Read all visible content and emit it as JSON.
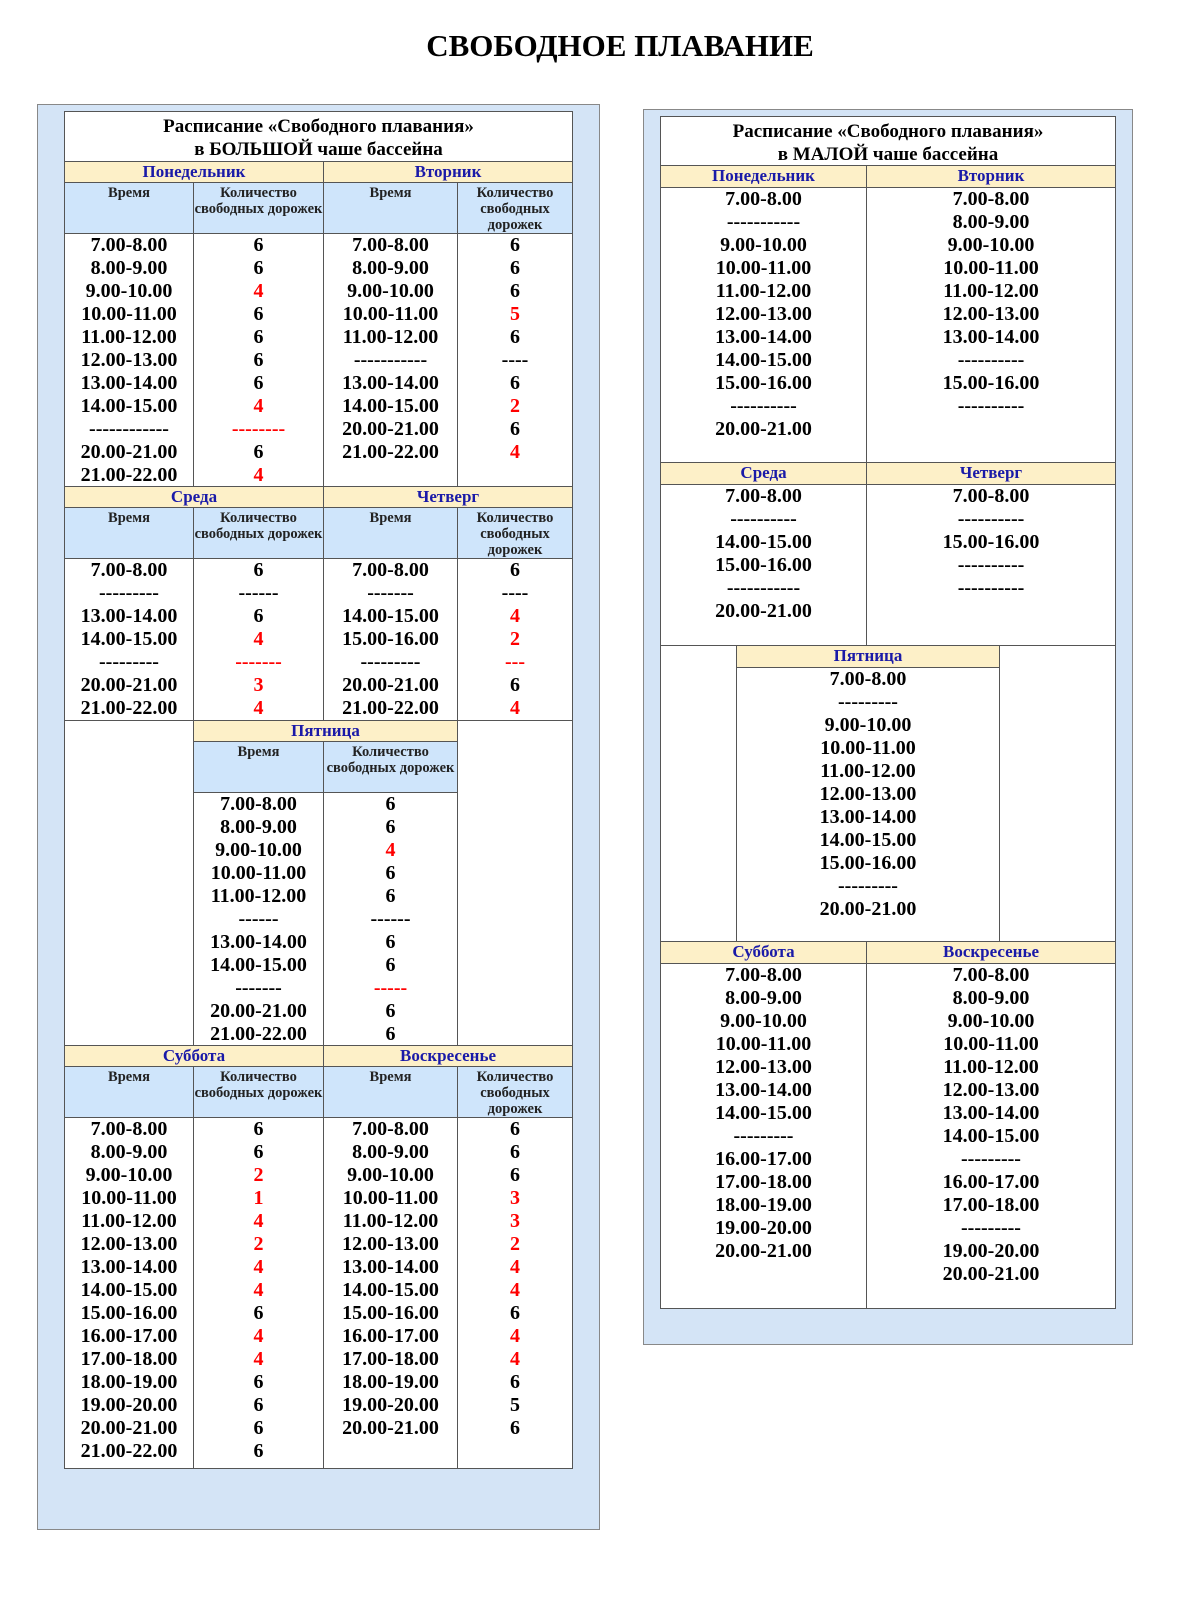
{
  "page_title": "СВОБОДНОЕ ПЛАВАНИЕ",
  "colors": {
    "highlight": "#ff0000",
    "day_header_bg": "#fdf0c8",
    "column_header_bg": "#cfe5fb",
    "panel_bg": "#d4e4f6",
    "day_text": "#1a1aa8"
  },
  "big_pool": {
    "title_line1": "Расписание «Свободного плавания»",
    "title_line2": "в БОЛЬШОЙ чаше бассейна",
    "col_time": "Время",
    "col_lanes": "Количество свободных дорожек",
    "days": [
      {
        "name": "Понедельник",
        "rows": [
          {
            "time": "7.00-8.00",
            "lanes": "6"
          },
          {
            "time": "8.00-9.00",
            "lanes": "6"
          },
          {
            "time": "9.00-10.00",
            "lanes": "4",
            "red": true
          },
          {
            "time": "10.00-11.00",
            "lanes": "6"
          },
          {
            "time": "11.00-12.00",
            "lanes": "6"
          },
          {
            "time": "12.00-13.00",
            "lanes": "6"
          },
          {
            "time": "13.00-14.00",
            "lanes": "6"
          },
          {
            "time": "14.00-15.00",
            "lanes": "4",
            "red": true
          },
          {
            "time": "------------",
            "lanes": "--------",
            "red": true
          },
          {
            "time": "20.00-21.00",
            "lanes": "6"
          },
          {
            "time": "21.00-22.00",
            "lanes": "4",
            "red": true
          }
        ]
      },
      {
        "name": "Вторник",
        "rows": [
          {
            "time": "7.00-8.00",
            "lanes": "6"
          },
          {
            "time": "8.00-9.00",
            "lanes": "6"
          },
          {
            "time": "9.00-10.00",
            "lanes": "6"
          },
          {
            "time": "10.00-11.00",
            "lanes": "5",
            "red": true
          },
          {
            "time": "11.00-12.00",
            "lanes": "6"
          },
          {
            "time": "-----------",
            "lanes": "----"
          },
          {
            "time": "13.00-14.00",
            "lanes": "6"
          },
          {
            "time": "14.00-15.00",
            "lanes": "2",
            "red": true
          },
          {
            "time": "20.00-21.00",
            "lanes": "6"
          },
          {
            "time": "21.00-22.00",
            "lanes": "4",
            "red": true
          }
        ]
      },
      {
        "name": "Среда",
        "rows": [
          {
            "time": "7.00-8.00",
            "lanes": "6"
          },
          {
            "time": "---------",
            "lanes": "------"
          },
          {
            "time": "13.00-14.00",
            "lanes": "6"
          },
          {
            "time": "14.00-15.00",
            "lanes": "4",
            "red": true
          },
          {
            "time": "---------",
            "lanes": "-------",
            "red": true
          },
          {
            "time": "20.00-21.00",
            "lanes": "3",
            "red": true
          },
          {
            "time": "21.00-22.00",
            "lanes": "4",
            "red": true
          }
        ]
      },
      {
        "name": "Четверг",
        "rows": [
          {
            "time": "7.00-8.00",
            "lanes": "6"
          },
          {
            "time": "-------",
            "lanes": "----"
          },
          {
            "time": "14.00-15.00",
            "lanes": "4",
            "red": true
          },
          {
            "time": "15.00-16.00",
            "lanes": "2",
            "red": true
          },
          {
            "time": "---------",
            "lanes": "---",
            "red": true
          },
          {
            "time": "20.00-21.00",
            "lanes": "6"
          },
          {
            "time": "21.00-22.00",
            "lanes": "4",
            "red": true
          }
        ]
      },
      {
        "name": "Пятница",
        "rows": [
          {
            "time": "7.00-8.00",
            "lanes": "6"
          },
          {
            "time": "8.00-9.00",
            "lanes": "6"
          },
          {
            "time": "9.00-10.00",
            "lanes": "4",
            "red": true
          },
          {
            "time": "10.00-11.00",
            "lanes": "6"
          },
          {
            "time": "11.00-12.00",
            "lanes": "6"
          },
          {
            "time": "------",
            "lanes": "------"
          },
          {
            "time": "13.00-14.00",
            "lanes": "6"
          },
          {
            "time": "14.00-15.00",
            "lanes": "6"
          },
          {
            "time": "-------",
            "lanes": "-----",
            "red": true
          },
          {
            "time": "20.00-21.00",
            "lanes": "6"
          },
          {
            "time": "21.00-22.00",
            "lanes": "6"
          }
        ]
      },
      {
        "name": "Суббота",
        "rows": [
          {
            "time": "7.00-8.00",
            "lanes": "6"
          },
          {
            "time": "8.00-9.00",
            "lanes": "6"
          },
          {
            "time": "9.00-10.00",
            "lanes": "2",
            "red": true
          },
          {
            "time": "10.00-11.00",
            "lanes": "1",
            "red": true
          },
          {
            "time": "11.00-12.00",
            "lanes": "4",
            "red": true
          },
          {
            "time": "12.00-13.00",
            "lanes": "2",
            "red": true
          },
          {
            "time": "13.00-14.00",
            "lanes": "4",
            "red": true
          },
          {
            "time": "14.00-15.00",
            "lanes": "4",
            "red": true
          },
          {
            "time": "15.00-16.00",
            "lanes": "6"
          },
          {
            "time": "16.00-17.00",
            "lanes": "4",
            "red": true
          },
          {
            "time": "17.00-18.00",
            "lanes": "4",
            "red": true
          },
          {
            "time": "18.00-19.00",
            "lanes": "6"
          },
          {
            "time": "19.00-20.00",
            "lanes": "6"
          },
          {
            "time": "20.00-21.00",
            "lanes": "6"
          },
          {
            "time": "21.00-22.00",
            "lanes": "6"
          }
        ]
      },
      {
        "name": "Воскресенье",
        "rows": [
          {
            "time": "7.00-8.00",
            "lanes": "6"
          },
          {
            "time": "8.00-9.00",
            "lanes": "6"
          },
          {
            "time": "9.00-10.00",
            "lanes": "6"
          },
          {
            "time": "10.00-11.00",
            "lanes": "3",
            "red": true
          },
          {
            "time": "11.00-12.00",
            "lanes": "3",
            "red": true
          },
          {
            "time": "12.00-13.00",
            "lanes": "2",
            "red": true
          },
          {
            "time": "13.00-14.00",
            "lanes": "4",
            "red": true
          },
          {
            "time": "14.00-15.00",
            "lanes": "4",
            "red": true
          },
          {
            "time": "15.00-16.00",
            "lanes": "6"
          },
          {
            "time": "16.00-17.00",
            "lanes": "4",
            "red": true
          },
          {
            "time": "17.00-18.00",
            "lanes": "4",
            "red": true
          },
          {
            "time": "18.00-19.00",
            "lanes": "6"
          },
          {
            "time": "19.00-20.00",
            "lanes": "5"
          },
          {
            "time": "20.00-21.00",
            "lanes": "6"
          }
        ]
      }
    ]
  },
  "small_pool": {
    "title_line1": "Расписание «Свободного плавания»",
    "title_line2": "в МАЛОЙ чаше бассейна",
    "days": [
      {
        "name": "Понедельник",
        "times": [
          "7.00-8.00",
          "-----------",
          "9.00-10.00",
          "10.00-11.00",
          "11.00-12.00",
          "12.00-13.00",
          "13.00-14.00",
          "14.00-15.00",
          "15.00-16.00",
          "----------",
          "20.00-21.00"
        ]
      },
      {
        "name": "Вторник",
        "times": [
          "7.00-8.00",
          "8.00-9.00",
          "9.00-10.00",
          "10.00-11.00",
          "11.00-12.00",
          "12.00-13.00",
          "13.00-14.00",
          "----------",
          "15.00-16.00",
          "----------"
        ]
      },
      {
        "name": "Среда",
        "times": [
          "7.00-8.00",
          "----------",
          "14.00-15.00",
          "15.00-16.00",
          "-----------",
          "20.00-21.00"
        ]
      },
      {
        "name": "Четверг",
        "times": [
          "7.00-8.00",
          "----------",
          "15.00-16.00",
          "----------",
          "----------"
        ]
      },
      {
        "name": "Пятница",
        "times": [
          "7.00-8.00",
          "---------",
          "9.00-10.00",
          "10.00-11.00",
          "11.00-12.00",
          "12.00-13.00",
          "13.00-14.00",
          "14.00-15.00",
          "15.00-16.00",
          "---------",
          "20.00-21.00"
        ]
      },
      {
        "name": "Суббота",
        "times": [
          "7.00-8.00",
          "8.00-9.00",
          "9.00-10.00",
          "10.00-11.00",
          "12.00-13.00",
          "13.00-14.00",
          "14.00-15.00",
          "---------",
          "16.00-17.00",
          "17.00-18.00",
          "18.00-19.00",
          "19.00-20.00",
          "20.00-21.00"
        ]
      },
      {
        "name": "Воскресенье",
        "times": [
          "7.00-8.00",
          "8.00-9.00",
          "9.00-10.00",
          "10.00-11.00",
          "11.00-12.00",
          "12.00-13.00",
          "13.00-14.00",
          "14.00-15.00",
          "---------",
          "16.00-17.00",
          "17.00-18.00",
          "---------",
          "19.00-20.00",
          "20.00-21.00"
        ]
      }
    ]
  }
}
